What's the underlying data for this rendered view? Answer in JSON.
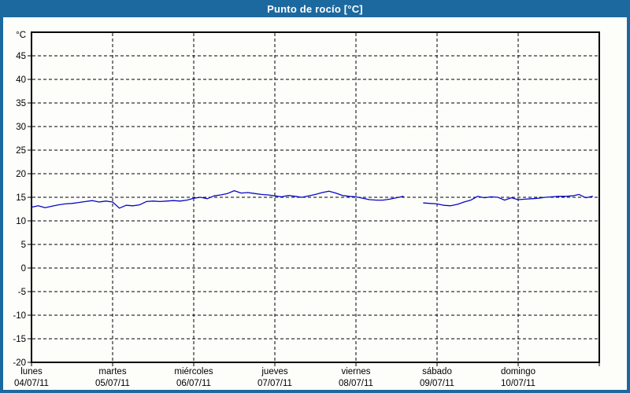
{
  "window": {
    "title": "Punto de rocío [°C]"
  },
  "colors": {
    "frame": "#1c699f",
    "titleText": "#ffffff",
    "bg": "#fdfefa",
    "plotBorder": "#000000",
    "grid": "#000000",
    "line": "#0808c8",
    "text": "#000000"
  },
  "chart_data": {
    "type": "line",
    "title": "Punto de rocío [°C]",
    "y_unit_label": "°C",
    "ylim": [
      -20,
      50
    ],
    "y_ticks": [
      45,
      40,
      35,
      30,
      25,
      20,
      15,
      10,
      5,
      0,
      -5,
      -10,
      -15,
      -20
    ],
    "grid": true,
    "legend_position": "none",
    "x_days": [
      {
        "name": "lunes",
        "date": "04/07/11"
      },
      {
        "name": "martes",
        "date": "05/07/11"
      },
      {
        "name": "miércoles",
        "date": "06/07/11"
      },
      {
        "name": "jueves",
        "date": "07/07/11"
      },
      {
        "name": "viernes",
        "date": "08/07/11"
      },
      {
        "name": "sábado",
        "date": "09/07/11"
      },
      {
        "name": "domingo",
        "date": "10/07/11"
      }
    ],
    "sample_interval_hours": 2,
    "series": [
      {
        "name": "Punto de rocío",
        "color": "#0808c8",
        "values": [
          12.9,
          13.2,
          12.8,
          13.1,
          13.4,
          13.6,
          13.7,
          13.9,
          14.1,
          14.3,
          14.0,
          14.2,
          14.0,
          12.7,
          13.3,
          13.2,
          13.4,
          14.1,
          14.2,
          14.1,
          14.2,
          14.3,
          14.2,
          14.4,
          14.8,
          15.0,
          14.7,
          15.3,
          15.5,
          15.8,
          16.4,
          15.9,
          16.0,
          15.8,
          15.6,
          15.5,
          15.3,
          15.1,
          15.4,
          15.2,
          15.0,
          15.3,
          15.6,
          16.0,
          16.3,
          15.9,
          15.4,
          15.2,
          15.1,
          14.8,
          14.5,
          14.4,
          14.4,
          14.6,
          14.9,
          15.2,
          null,
          null,
          13.8,
          13.7,
          13.6,
          13.3,
          13.2,
          13.5,
          14.0,
          14.4,
          15.2,
          14.9,
          15.1,
          15.0,
          14.4,
          14.9,
          14.5,
          14.6,
          14.7,
          14.8,
          15.0,
          15.1,
          15.2,
          15.2,
          15.3,
          15.6,
          14.9,
          15.2
        ]
      }
    ]
  }
}
